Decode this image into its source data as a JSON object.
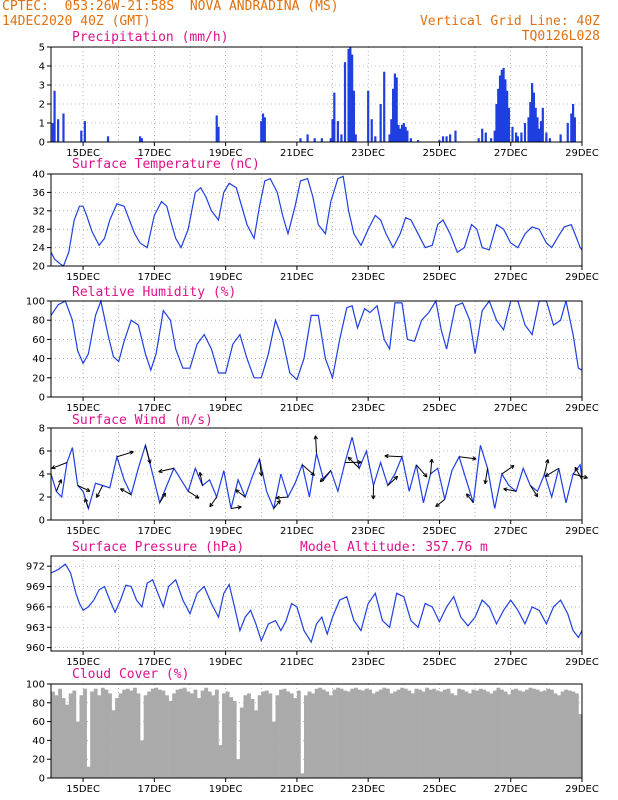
{
  "header": {
    "line1_left": "CPTEC:  053:26W-21:58S  NOVA ANDRADINA (MS)",
    "line2_left": "14DEC2020 40Z (GMT)",
    "line2_right": "Vertical Grid Line: 40Z",
    "line3_right": "TQ0126L028"
  },
  "colors": {
    "header": "#e07010",
    "title": "#e0108a",
    "line": "#1f3fe0",
    "bar": "#1f3fe0",
    "cloud": "#aaaaaa",
    "arrow": "#000000",
    "axis": "#000000",
    "grid": "#888888"
  },
  "x_tick_labels": [
    "15DEC",
    "17DEC",
    "19DEC",
    "21DEC",
    "23DEC",
    "25DEC",
    "27DEC",
    "29DEC"
  ],
  "chart_data": [
    {
      "type": "bar",
      "title": "Precipitation (mm/h)",
      "ylim": [
        0,
        5
      ],
      "yticks": [
        0,
        1,
        2,
        3,
        4,
        5
      ],
      "x_range_days": [
        14.1,
        29.0
      ],
      "grid": true,
      "x": [
        14.15,
        14.2,
        14.3,
        14.45,
        14.95,
        15.05,
        15.7,
        16.6,
        16.65,
        18.75,
        18.8,
        20.0,
        20.05,
        20.1,
        21.1,
        21.3,
        21.5,
        21.7,
        21.95,
        22.0,
        22.05,
        22.15,
        22.25,
        22.35,
        22.45,
        22.5,
        22.55,
        22.6,
        22.65,
        23.0,
        23.1,
        23.2,
        23.35,
        23.45,
        23.6,
        23.65,
        23.7,
        23.75,
        23.8,
        23.85,
        23.9,
        23.95,
        24.0,
        24.05,
        24.1,
        24.2,
        24.4,
        25.0,
        25.1,
        25.2,
        25.3,
        25.45,
        26.1,
        26.2,
        26.3,
        26.45,
        26.55,
        26.6,
        26.65,
        26.7,
        26.75,
        26.8,
        26.85,
        26.9,
        26.95,
        27.05,
        27.15,
        27.2,
        27.3,
        27.4,
        27.5,
        27.55,
        27.6,
        27.65,
        27.7,
        27.75,
        27.8,
        27.85,
        27.9,
        28.0,
        28.1,
        28.4,
        28.6,
        28.7,
        28.75,
        28.8
      ],
      "values": [
        1.0,
        2.7,
        1.2,
        1.5,
        0.6,
        1.1,
        0.3,
        0.3,
        0.2,
        1.4,
        0.8,
        1.1,
        1.5,
        1.3,
        0.2,
        0.4,
        0.2,
        0.2,
        0.2,
        1.2,
        2.6,
        1.1,
        0.4,
        4.2,
        4.9,
        5.0,
        4.6,
        2.7,
        0.4,
        2.7,
        1.2,
        0.3,
        2.0,
        3.7,
        0.4,
        1.2,
        2.8,
        3.6,
        3.4,
        0.9,
        0.7,
        0.9,
        1.0,
        0.8,
        0.6,
        0.2,
        0.1,
        0.1,
        0.3,
        0.3,
        0.4,
        0.6,
        0.2,
        0.7,
        0.5,
        0.2,
        0.6,
        2.0,
        2.8,
        3.5,
        3.8,
        3.9,
        3.3,
        2.7,
        1.8,
        0.8,
        0.5,
        0.3,
        0.5,
        1.0,
        1.3,
        2.1,
        3.1,
        2.6,
        1.8,
        1.3,
        0.7,
        1.1,
        1.8,
        0.5,
        0.2,
        0.4,
        1.0,
        1.5,
        2.0,
        1.3
      ]
    },
    {
      "type": "line",
      "title": "Surface Temperature (nC)",
      "ylim": [
        20,
        40
      ],
      "yticks": [
        20,
        24,
        28,
        32,
        36,
        40
      ],
      "x_range_days": [
        14.1,
        29.0
      ],
      "grid": true,
      "x": [
        14.1,
        14.2,
        14.35,
        14.45,
        14.6,
        14.75,
        14.9,
        15.0,
        15.1,
        15.25,
        15.45,
        15.6,
        15.75,
        15.95,
        16.15,
        16.3,
        16.45,
        16.6,
        16.8,
        17.0,
        17.2,
        17.35,
        17.45,
        17.6,
        17.75,
        17.95,
        18.15,
        18.3,
        18.45,
        18.6,
        18.8,
        18.95,
        19.1,
        19.3,
        19.45,
        19.6,
        19.8,
        19.95,
        20.1,
        20.25,
        20.45,
        20.6,
        20.75,
        20.95,
        21.1,
        21.3,
        21.45,
        21.6,
        21.8,
        21.95,
        22.15,
        22.3,
        22.45,
        22.6,
        22.8,
        23.0,
        23.2,
        23.35,
        23.5,
        23.7,
        23.9,
        24.05,
        24.2,
        24.4,
        24.6,
        24.8,
        24.95,
        25.1,
        25.3,
        25.5,
        25.7,
        25.9,
        26.05,
        26.2,
        26.4,
        26.6,
        26.8,
        27.0,
        27.2,
        27.4,
        27.6,
        27.8,
        28.0,
        28.15,
        28.3,
        28.5,
        28.7,
        28.85,
        28.95,
        29.0
      ],
      "values": [
        23,
        21.5,
        20.5,
        20.0,
        23,
        30,
        33,
        33,
        31,
        27.5,
        24.5,
        26,
        30,
        33.5,
        33,
        30,
        27,
        25,
        24,
        31,
        34,
        33,
        30,
        26,
        24,
        28,
        36,
        37,
        35,
        32,
        30,
        36,
        38,
        37,
        33,
        29,
        26,
        33,
        38.5,
        39,
        36,
        31,
        27,
        33,
        38.5,
        39,
        35,
        29,
        27,
        34,
        39,
        39.5,
        32,
        27,
        24.5,
        28,
        31,
        30,
        27,
        24,
        27,
        30.5,
        30,
        27,
        24,
        24.5,
        29,
        30,
        27,
        23,
        24,
        29,
        28,
        24,
        23.5,
        29,
        28,
        25,
        24,
        27,
        28.5,
        28,
        25,
        24,
        26,
        28.5,
        29,
        26,
        24,
        23.5
      ]
    },
    {
      "type": "line",
      "title": "Relative Humidity (%)",
      "ylim": [
        0,
        100
      ],
      "yticks": [
        0,
        20,
        40,
        60,
        80,
        100
      ],
      "x_range_days": [
        14.1,
        29.0
      ],
      "grid": true,
      "x": [
        14.1,
        14.3,
        14.5,
        14.7,
        14.85,
        15.0,
        15.15,
        15.35,
        15.5,
        15.7,
        15.85,
        16.0,
        16.15,
        16.35,
        16.55,
        16.75,
        16.9,
        17.05,
        17.25,
        17.45,
        17.6,
        17.8,
        18.0,
        18.2,
        18.4,
        18.6,
        18.8,
        19.0,
        19.2,
        19.4,
        19.6,
        19.8,
        20.0,
        20.2,
        20.4,
        20.6,
        20.8,
        21.0,
        21.2,
        21.4,
        21.6,
        21.8,
        22.0,
        22.2,
        22.4,
        22.55,
        22.7,
        22.9,
        23.05,
        23.25,
        23.45,
        23.6,
        23.75,
        23.95,
        24.1,
        24.3,
        24.5,
        24.7,
        24.9,
        25.05,
        25.2,
        25.45,
        25.65,
        25.85,
        26.0,
        26.2,
        26.4,
        26.6,
        26.8,
        27.0,
        27.2,
        27.4,
        27.6,
        27.8,
        28.0,
        28.2,
        28.4,
        28.55,
        28.75,
        28.9,
        29.0
      ],
      "values": [
        85,
        96,
        100,
        80,
        48,
        35,
        45,
        85,
        100,
        65,
        42,
        37,
        58,
        80,
        75,
        45,
        28,
        45,
        90,
        80,
        50,
        30,
        30,
        55,
        65,
        50,
        25,
        25,
        55,
        65,
        40,
        20,
        20,
        45,
        80,
        60,
        25,
        18,
        40,
        85,
        85,
        40,
        20,
        60,
        93,
        95,
        72,
        92,
        88,
        95,
        60,
        50,
        98,
        98,
        60,
        58,
        80,
        88,
        100,
        70,
        50,
        95,
        98,
        80,
        45,
        90,
        100,
        80,
        70,
        100,
        100,
        75,
        65,
        100,
        100,
        75,
        80,
        100,
        65,
        30,
        28
      ]
    },
    {
      "type": "line",
      "title": "Surface Wind (m/s)",
      "ylim": [
        0,
        8
      ],
      "yticks": [
        0,
        2,
        4,
        6,
        8
      ],
      "x_range_days": [
        14.1,
        29.0
      ],
      "grid": true,
      "x": [
        14.1,
        14.25,
        14.4,
        14.55,
        14.7,
        14.85,
        15.0,
        15.15,
        15.35,
        15.55,
        15.75,
        15.95,
        16.15,
        16.35,
        16.55,
        16.75,
        16.95,
        17.15,
        17.35,
        17.55,
        17.75,
        17.95,
        18.15,
        18.35,
        18.55,
        18.75,
        18.95,
        19.15,
        19.35,
        19.55,
        19.75,
        19.95,
        20.15,
        20.35,
        20.55,
        20.75,
        20.95,
        21.15,
        21.35,
        21.55,
        21.75,
        21.95,
        22.15,
        22.35,
        22.55,
        22.75,
        22.95,
        23.15,
        23.35,
        23.55,
        23.75,
        23.95,
        24.15,
        24.35,
        24.55,
        24.75,
        24.95,
        25.15,
        25.35,
        25.55,
        25.75,
        25.95,
        26.15,
        26.35,
        26.55,
        26.75,
        26.95,
        27.15,
        27.35,
        27.55,
        27.75,
        27.95,
        28.15,
        28.35,
        28.55,
        28.75,
        28.95,
        29.0
      ],
      "values": [
        4,
        2.5,
        2,
        5,
        6.3,
        3,
        2.5,
        1,
        3.2,
        3,
        2.8,
        5.5,
        3.5,
        2.2,
        4.5,
        6.5,
        4,
        1.5,
        3,
        4.5,
        3.5,
        2.5,
        4.5,
        3,
        3.5,
        2,
        4.3,
        1,
        3.5,
        2,
        3.8,
        5.3,
        2.5,
        1,
        4,
        2,
        3.2,
        4.8,
        2,
        5.8,
        3.5,
        4.3,
        2.5,
        5,
        7.2,
        4.5,
        6,
        3,
        5,
        3,
        4,
        5.5,
        2.5,
        4.8,
        1.5,
        4,
        4.5,
        1.8,
        4.3,
        5.5,
        3.5,
        1.5,
        6.5,
        4.5,
        1,
        4,
        3,
        2.5,
        4.5,
        3,
        2.5,
        4,
        2,
        4.5,
        1.5,
        4,
        4.8,
        3.5
      ]
    },
    {
      "type": "line",
      "title": "Surface Pressure (hPa)",
      "annotation": "Model Altitude: 357.76 m",
      "ylim": [
        959.5,
        973.5
      ],
      "yticks": [
        960,
        963,
        966,
        969,
        972
      ],
      "x_range_days": [
        14.1,
        29.0
      ],
      "grid": true,
      "x": [
        14.1,
        14.3,
        14.5,
        14.65,
        14.8,
        14.9,
        15.0,
        15.15,
        15.3,
        15.45,
        15.6,
        15.75,
        15.9,
        16.05,
        16.2,
        16.35,
        16.5,
        16.65,
        16.8,
        16.95,
        17.1,
        17.25,
        17.4,
        17.6,
        17.8,
        18.0,
        18.2,
        18.4,
        18.6,
        18.8,
        18.95,
        19.1,
        19.25,
        19.4,
        19.55,
        19.7,
        19.85,
        20.0,
        20.2,
        20.4,
        20.55,
        20.7,
        20.85,
        21.0,
        21.2,
        21.4,
        21.55,
        21.7,
        21.85,
        22.0,
        22.2,
        22.4,
        22.6,
        22.8,
        23.0,
        23.2,
        23.4,
        23.6,
        23.8,
        24.0,
        24.2,
        24.4,
        24.6,
        24.8,
        25.0,
        25.2,
        25.4,
        25.6,
        25.8,
        26.0,
        26.2,
        26.4,
        26.6,
        26.8,
        27.0,
        27.2,
        27.4,
        27.6,
        27.8,
        28.0,
        28.2,
        28.4,
        28.6,
        28.75,
        28.9,
        29.0
      ],
      "values": [
        971,
        971.5,
        972.3,
        971,
        968,
        966.5,
        965.5,
        966,
        967,
        968.5,
        969,
        967,
        965.2,
        967,
        969.2,
        969,
        967,
        966,
        969.5,
        970,
        968,
        966,
        969,
        970,
        967,
        965,
        968,
        969,
        966.5,
        964.5,
        968,
        969.3,
        966,
        962.5,
        964.5,
        965.5,
        963.5,
        961,
        963.5,
        964,
        962.5,
        964,
        966.5,
        966,
        962.5,
        960.8,
        963.5,
        964.5,
        962,
        964.5,
        967,
        967.5,
        964,
        962.5,
        966.5,
        968,
        964,
        963,
        968,
        967.5,
        964,
        963,
        966.5,
        966,
        963.8,
        966,
        967.5,
        964.5,
        963.2,
        964.5,
        967,
        966,
        963.5,
        965.5,
        967,
        965.5,
        963.5,
        966,
        965.5,
        963.5,
        966,
        967,
        965,
        962.5,
        961.5,
        962.5
      ]
    },
    {
      "type": "bar",
      "title": "Cloud Cover (%)",
      "ylim": [
        0,
        100
      ],
      "yticks": [
        0,
        20,
        40,
        60,
        80,
        100
      ],
      "x_range_days": [
        14.1,
        29.0
      ],
      "grid": true,
      "x": [
        14.1,
        14.2,
        14.3,
        14.4,
        14.5,
        14.6,
        14.7,
        14.8,
        14.9,
        15.0,
        15.1,
        15.2,
        15.3,
        15.4,
        15.5,
        15.6,
        15.7,
        15.8,
        15.9,
        16.0,
        16.1,
        16.2,
        16.3,
        16.4,
        16.5,
        16.6,
        16.7,
        16.8,
        16.9,
        17.0,
        17.1,
        17.2,
        17.3,
        17.4,
        17.5,
        17.6,
        17.7,
        17.8,
        17.9,
        18.0,
        18.1,
        18.2,
        18.3,
        18.4,
        18.5,
        18.6,
        18.7,
        18.8,
        18.9,
        19.0,
        19.1,
        19.2,
        19.3,
        19.4,
        19.5,
        19.6,
        19.7,
        19.8,
        19.9,
        20.0,
        20.1,
        20.2,
        20.3,
        20.4,
        20.5,
        20.6,
        20.7,
        20.8,
        20.9,
        21.0,
        21.1,
        21.2,
        21.3,
        21.4,
        21.5,
        21.6,
        21.7,
        21.8,
        21.9,
        22.0,
        22.1,
        22.2,
        22.3,
        22.4,
        22.5,
        22.6,
        22.7,
        22.8,
        22.9,
        23.0,
        23.1,
        23.2,
        23.3,
        23.4,
        23.5,
        23.6,
        23.7,
        23.8,
        23.9,
        24.0,
        24.1,
        24.2,
        24.3,
        24.4,
        24.5,
        24.6,
        24.7,
        24.8,
        24.9,
        25.0,
        25.1,
        25.2,
        25.3,
        25.4,
        25.5,
        25.6,
        25.7,
        25.8,
        25.9,
        26.0,
        26.1,
        26.2,
        26.3,
        26.4,
        26.5,
        26.6,
        26.7,
        26.8,
        26.9,
        27.0,
        27.1,
        27.2,
        27.3,
        27.4,
        27.5,
        27.6,
        27.7,
        27.8,
        27.9,
        28.0,
        28.1,
        28.2,
        28.3,
        28.4,
        28.5,
        28.6,
        28.7,
        28.8,
        28.9
      ],
      "values": [
        92,
        88,
        95,
        85,
        78,
        90,
        93,
        60,
        88,
        95,
        12,
        92,
        95,
        88,
        96,
        94,
        90,
        72,
        85,
        90,
        94,
        95,
        93,
        96,
        90,
        40,
        88,
        92,
        95,
        96,
        94,
        93,
        88,
        82,
        90,
        94,
        95,
        96,
        92,
        90,
        94,
        85,
        93,
        96,
        92,
        88,
        94,
        35,
        90,
        92,
        86,
        82,
        20,
        75,
        88,
        90,
        84,
        72,
        88,
        92,
        93,
        90,
        60,
        88,
        94,
        95,
        92,
        90,
        85,
        93,
        5,
        88,
        92,
        90,
        95,
        96,
        94,
        92,
        88,
        94,
        96,
        95,
        93,
        92,
        95,
        96,
        94,
        93,
        95,
        94,
        90,
        92,
        94,
        96,
        95,
        90,
        92,
        94,
        96,
        95,
        93,
        90,
        95,
        94,
        92,
        96,
        94,
        95,
        93,
        92,
        94,
        95,
        90,
        88,
        95,
        94,
        92,
        90,
        94,
        93,
        95,
        94,
        92,
        90,
        93,
        96,
        94,
        92,
        89,
        94,
        95,
        93,
        92,
        94,
        96,
        95,
        94,
        92,
        93,
        95,
        94,
        90,
        88,
        92,
        94,
        93,
        92,
        90,
        68
      ]
    }
  ]
}
